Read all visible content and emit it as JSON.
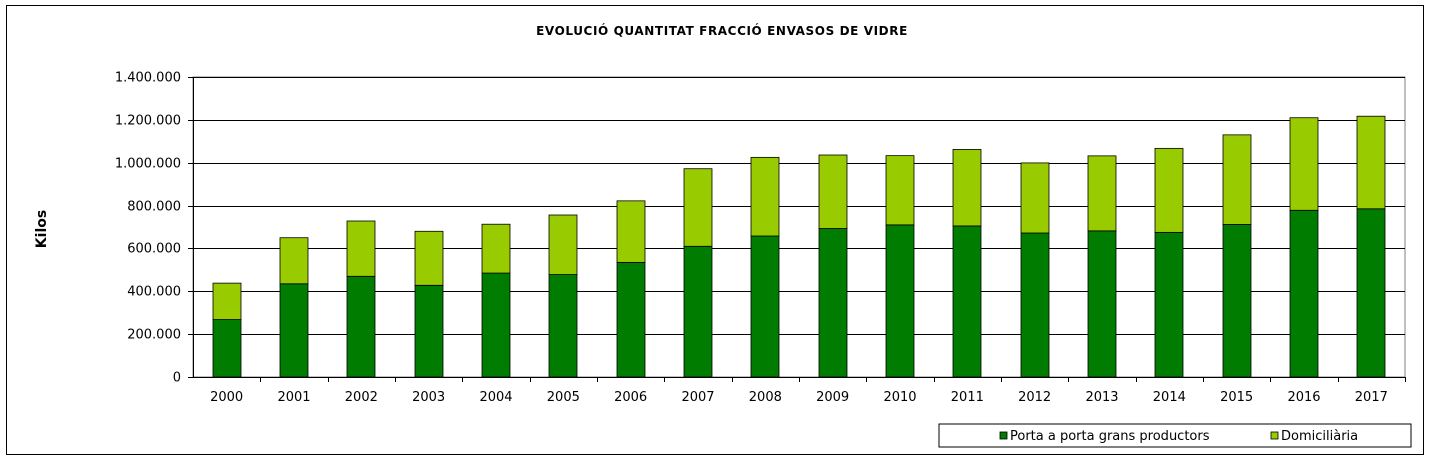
{
  "chart_data": {
    "type": "bar",
    "stacked": true,
    "title": "EVOLUCIÓ QUANTITAT FRACCIÓ ENVASOS DE VIDRE",
    "xlabel": "",
    "ylabel": "Kilos",
    "ylim": [
      0,
      1400000
    ],
    "yticks": [
      0,
      200000,
      400000,
      600000,
      800000,
      1000000,
      1200000,
      1400000
    ],
    "ytick_labels": [
      "0",
      "200.000",
      "400.000",
      "600.000",
      "800.000",
      "1.000.000",
      "1.200.000",
      "1.400.000"
    ],
    "grid": true,
    "legend_position": "bottom-right",
    "categories": [
      "2000",
      "2001",
      "2002",
      "2003",
      "2004",
      "2005",
      "2006",
      "2007",
      "2008",
      "2009",
      "2010",
      "2011",
      "2012",
      "2013",
      "2014",
      "2015",
      "2016",
      "2017"
    ],
    "series": [
      {
        "name": "Porta a porta grans productors",
        "color": "#007d00",
        "values": [
          268000,
          435000,
          470000,
          428000,
          485000,
          478000,
          535000,
          610000,
          658000,
          693000,
          710000,
          705000,
          672000,
          682000,
          675000,
          712000,
          778000,
          785000
        ]
      },
      {
        "name": "Domiciliària",
        "color": "#99cc00",
        "values": [
          170000,
          215000,
          258000,
          252000,
          228000,
          278000,
          287000,
          362000,
          367000,
          343000,
          323000,
          357000,
          327000,
          350000,
          392000,
          418000,
          432000,
          432000
        ]
      }
    ]
  }
}
